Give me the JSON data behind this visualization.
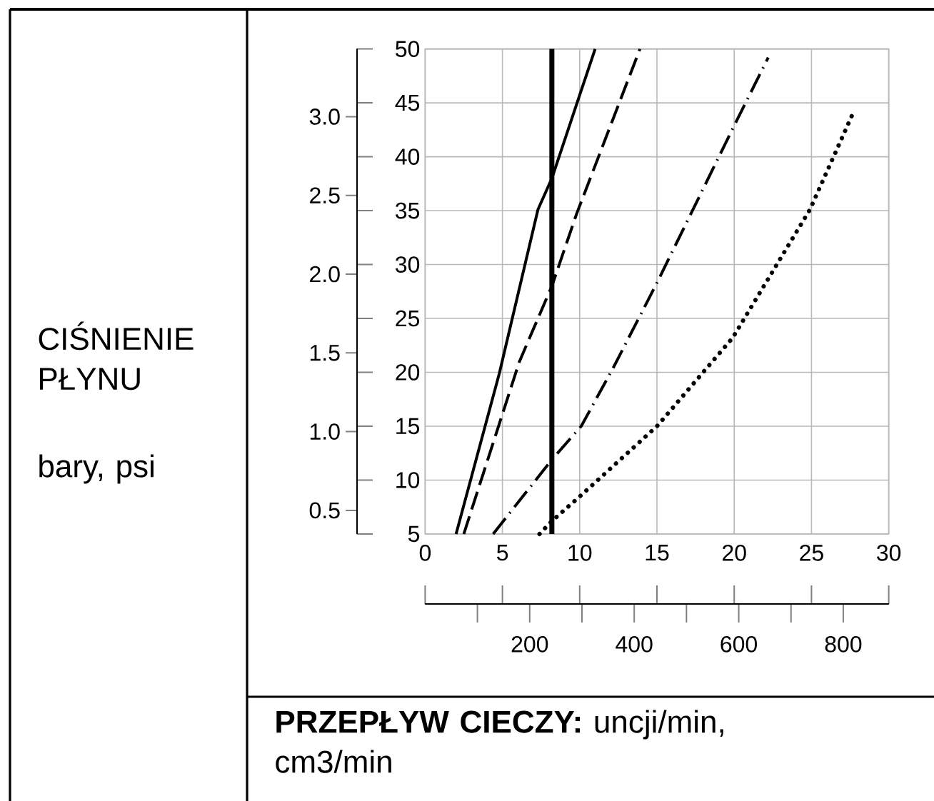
{
  "chart_data": {
    "type": "line",
    "xlabel": "**PRZEPŁYW CIECZY:** uncji/min, cm3/min",
    "annotations": [
      "CIŚNIENIE PŁYNU",
      "bary, psi"
    ],
    "xlim": [
      0,
      30
    ],
    "xticks": [
      0,
      5,
      10,
      15,
      20,
      25,
      30
    ],
    "ylim": [
      5,
      50
    ],
    "yticks": [
      5,
      10,
      15,
      20,
      25,
      30,
      35,
      40,
      45,
      50
    ],
    "y2lim": [
      0.35,
      3.43
    ],
    "y2ticks": [
      0.5,
      {
        "value": 1,
        "label": "1.0"
      },
      1.5,
      {
        "value": 2,
        "label": "2.0"
      },
      2.5,
      {
        "value": 3,
        "label": "3.0"
      }
    ],
    "x2lim": [
      0,
      887
    ],
    "x2ticks": [
      {
        "value": 100,
        "label": null
      },
      200,
      {
        "value": 300,
        "label": null
      },
      400,
      {
        "value": 500,
        "label": null
      },
      600,
      {
        "value": 700,
        "label": null
      },
      800
    ],
    "grid": true,
    "series": [
      {
        "color": "#000000",
        "line_style": "solid",
        "x": [
          2.0,
          4.8,
          7.3,
          8.2,
          9.9,
          11.0
        ],
        "values": [
          5,
          19.9,
          35.1,
          38,
          45.3,
          50
        ]
      },
      {
        "color": "#000000",
        "line_style": "dashed",
        "x": [
          2.5,
          6.1,
          8.2,
          9.8,
          13.9
        ],
        "values": [
          5,
          21,
          28,
          34.7,
          50
        ]
      },
      {
        "color": "#000000",
        "line_style": "dashdot",
        "x": [
          4.4,
          8.2,
          10.1,
          12.2,
          15.0,
          19.9,
          22.2
        ],
        "values": [
          5,
          11.9,
          15,
          20.5,
          28.3,
          42.6,
          49.2
        ]
      },
      {
        "color": "#000000",
        "line_style": "dotted",
        "x": [
          7.4,
          8.2,
          10.1,
          15.0,
          19.9,
          24.9,
          27.8
        ],
        "values": [
          5,
          6.2,
          8.6,
          15,
          23.2,
          35.1,
          44.4
        ]
      }
    ],
    "ref_lines": [
      {
        "axis": "x",
        "value": 8.2,
        "color": "#000000"
      }
    ]
  }
}
